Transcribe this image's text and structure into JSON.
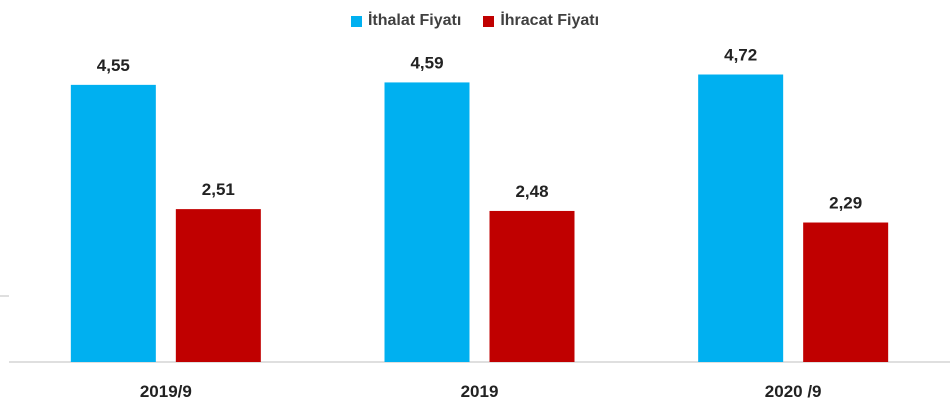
{
  "chart_data": {
    "type": "bar",
    "categories": [
      "2019/9",
      "2019",
      "2020 /9"
    ],
    "series": [
      {
        "name": "İthalat Fiyatı",
        "color": "#00B0F0",
        "values": [
          4.55,
          4.59,
          4.72
        ],
        "labels": [
          "4,55",
          "4,59",
          "4,72"
        ]
      },
      {
        "name": "İhracat Fiyatı",
        "color": "#C00000",
        "values": [
          2.51,
          2.48,
          2.29
        ],
        "labels": [
          "2,51",
          "2,48",
          "2,29"
        ]
      }
    ],
    "ylim": [
      0,
      5.5
    ],
    "legend_position": "top-center",
    "grid": false
  }
}
